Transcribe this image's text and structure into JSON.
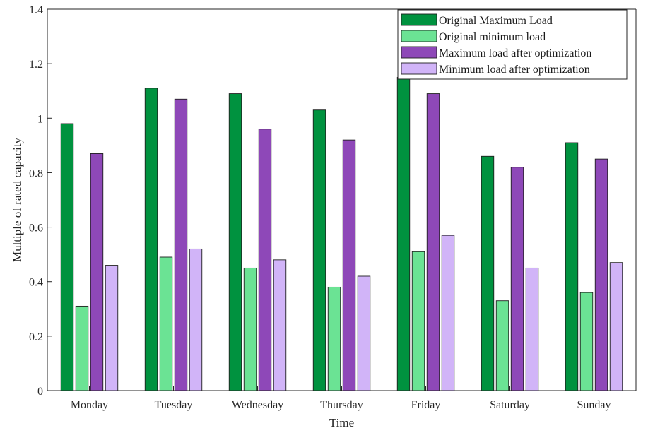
{
  "chart_data": {
    "type": "bar",
    "xlabel": "Time",
    "ylabel": "Multiple of rated capacity",
    "ylim": [
      0,
      1.4
    ],
    "yticks": [
      "0",
      "0.2",
      "0.4",
      "0.6",
      "0.8",
      "1",
      "1.2",
      "1.4"
    ],
    "grid": false,
    "legend_position": "top-right",
    "categories": [
      "Monday",
      "Tuesday",
      "Wednesday",
      "Thursday",
      "Friday",
      "Saturday",
      "Sunday"
    ],
    "series": [
      {
        "name": "Original Maximum Load",
        "color": "#00923f",
        "values": [
          0.98,
          1.11,
          1.09,
          1.03,
          1.15,
          0.86,
          0.91
        ]
      },
      {
        "name": "Original minimum load",
        "color": "#6be394",
        "values": [
          0.31,
          0.49,
          0.45,
          0.38,
          0.51,
          0.33,
          0.36
        ]
      },
      {
        "name": "Maximum load after optimization",
        "color": "#8e48b8",
        "values": [
          0.87,
          1.07,
          0.96,
          0.92,
          1.09,
          0.82,
          0.85
        ]
      },
      {
        "name": "Minimum load after optimization",
        "color": "#d1b4f8",
        "values": [
          0.46,
          0.52,
          0.48,
          0.42,
          0.57,
          0.45,
          0.47
        ]
      }
    ]
  }
}
